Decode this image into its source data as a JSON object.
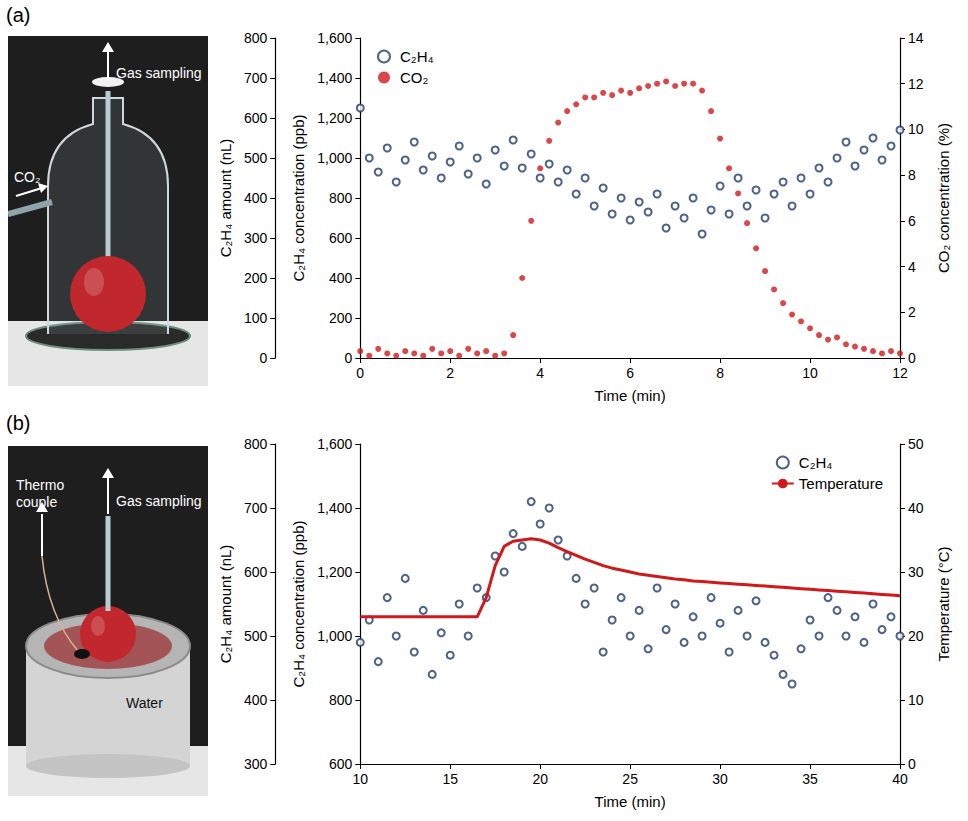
{
  "panels": [
    {
      "label": "(a)",
      "photo": {
        "gas_sampling": "Gas sampling",
        "inlet": "CO₂"
      }
    },
    {
      "label": "(b)",
      "photo": {
        "thermocouple": "Thermo couple",
        "gas_sampling": "Gas sampling",
        "water": "Water"
      }
    }
  ],
  "chart_data": [
    {
      "type": "scatter",
      "xlabel": "Time (min)",
      "ylabel": "C₂H₄ concentration (ppb)",
      "y2label": "CO₂ concentration (%)",
      "y3label": "C₂H₄ amount (nL)",
      "xlim": [
        0,
        12
      ],
      "xticks": [
        0,
        2,
        4,
        6,
        8,
        10,
        12
      ],
      "ylim": [
        0,
        1600
      ],
      "yticks": [
        0,
        200,
        400,
        600,
        800,
        1000,
        1200,
        1400,
        1600
      ],
      "y2lim": [
        0,
        14
      ],
      "y2ticks": [
        0,
        2,
        4,
        6,
        8,
        10,
        12,
        14
      ],
      "y3lim": [
        0,
        800
      ],
      "y3ticks": [
        0,
        100,
        200,
        300,
        400,
        500,
        600,
        700,
        800
      ],
      "legend": "top-left",
      "grid": false,
      "x": [
        0,
        0.2,
        0.4,
        0.6,
        0.8,
        1,
        1.2,
        1.4,
        1.6,
        1.8,
        2,
        2.2,
        2.4,
        2.6,
        2.8,
        3,
        3.2,
        3.4,
        3.6,
        3.8,
        4,
        4.2,
        4.4,
        4.6,
        4.8,
        5,
        5.2,
        5.4,
        5.6,
        5.8,
        6,
        6.2,
        6.4,
        6.6,
        6.8,
        7,
        7.2,
        7.4,
        7.6,
        7.8,
        8,
        8.2,
        8.4,
        8.6,
        8.8,
        9,
        9.2,
        9.4,
        9.6,
        9.8,
        10,
        10.2,
        10.4,
        10.6,
        10.8,
        11,
        11.2,
        11.4,
        11.6,
        11.8,
        12
      ],
      "series": [
        {
          "name": "C₂H₄",
          "color": "#1f3a6e",
          "marker": "hollow_circle",
          "axis": "y",
          "values": [
            1250,
            1000,
            930,
            1050,
            880,
            990,
            1080,
            940,
            1010,
            900,
            980,
            1060,
            920,
            1000,
            870,
            1040,
            960,
            1090,
            950,
            1020,
            900,
            970,
            880,
            940,
            820,
            900,
            760,
            850,
            720,
            800,
            690,
            780,
            730,
            820,
            650,
            760,
            700,
            800,
            620,
            740,
            860,
            720,
            900,
            760,
            840,
            700,
            820,
            880,
            760,
            900,
            820,
            950,
            880,
            1000,
            1080,
            960,
            1040,
            1100,
            990,
            1060,
            1140
          ]
        },
        {
          "name": "CO₂",
          "color": "#d0191b",
          "marker": "circle",
          "axis": "y2",
          "values": [
            0.3,
            0.1,
            0.4,
            0.2,
            0.1,
            0.3,
            0.2,
            0.1,
            0.4,
            0.2,
            0.3,
            0.1,
            0.4,
            0.2,
            0.3,
            0.1,
            0.2,
            1.0,
            3.5,
            6.0,
            8.3,
            9.5,
            10.3,
            10.8,
            11.1,
            11.4,
            11.4,
            11.6,
            11.5,
            11.7,
            11.6,
            11.8,
            11.9,
            12.0,
            12.1,
            11.9,
            12.0,
            12.0,
            11.7,
            10.8,
            9.6,
            8.3,
            7.2,
            5.9,
            4.8,
            3.8,
            3.0,
            2.4,
            1.9,
            1.6,
            1.3,
            1.0,
            0.8,
            0.9,
            0.6,
            0.5,
            0.4,
            0.3,
            0.2,
            0.3,
            0.2
          ]
        }
      ]
    },
    {
      "type": "scatter",
      "xlabel": "Time (min)",
      "ylabel": "C₂H₄ concentration (ppb)",
      "y2label": "Temperature (°C)",
      "y3label": "C₂H₄ amount (nL)",
      "xlim": [
        10,
        40
      ],
      "xticks": [
        10,
        15,
        20,
        25,
        30,
        35,
        40
      ],
      "ylim": [
        600,
        1600
      ],
      "yticks": [
        600,
        800,
        1000,
        1200,
        1400,
        1600
      ],
      "y2lim": [
        0,
        50
      ],
      "y2ticks": [
        0,
        10,
        20,
        30,
        40,
        50
      ],
      "y3lim": [
        300,
        800
      ],
      "y3ticks": [
        300,
        400,
        500,
        600,
        700,
        800
      ],
      "legend": "top-right",
      "grid": false,
      "x": [
        10,
        10.5,
        11,
        11.5,
        12,
        12.5,
        13,
        13.5,
        14,
        14.5,
        15,
        15.5,
        16,
        16.5,
        17,
        17.5,
        18,
        18.5,
        19,
        19.5,
        20,
        20.5,
        21,
        21.5,
        22,
        22.5,
        23,
        23.5,
        24,
        24.5,
        25,
        25.5,
        26,
        26.5,
        27,
        27.5,
        28,
        28.5,
        29,
        29.5,
        30,
        30.5,
        31,
        31.5,
        32,
        32.5,
        33,
        33.5,
        34,
        34.5,
        35,
        35.5,
        36,
        36.5,
        37,
        37.5,
        38,
        38.5,
        39,
        39.5,
        40
      ],
      "series": [
        {
          "name": "C₂H₄",
          "color": "#1f3a6e",
          "marker": "hollow_circle",
          "axis": "y",
          "values": [
            980,
            1050,
            920,
            1120,
            1000,
            1180,
            950,
            1080,
            880,
            1010,
            940,
            1100,
            1000,
            1150,
            1120,
            1250,
            1200,
            1320,
            1280,
            1420,
            1350,
            1400,
            1300,
            1250,
            1180,
            1100,
            1150,
            950,
            1050,
            1120,
            1000,
            1080,
            960,
            1150,
            1020,
            1100,
            980,
            1060,
            1000,
            1120,
            1040,
            950,
            1080,
            1000,
            1110,
            980,
            940,
            880,
            850,
            960,
            1050,
            1000,
            1120,
            1080,
            1000,
            1060,
            980,
            1100,
            1020,
            1060,
            1000
          ]
        },
        {
          "name": "Temperature",
          "color": "#d0191b",
          "type": "line",
          "line_style": "solid",
          "axis": "y2",
          "values": [
            23,
            23,
            23,
            23,
            23,
            23,
            23,
            23,
            23,
            23,
            23,
            23,
            23,
            23,
            26,
            31,
            34,
            34.8,
            35,
            35.2,
            35,
            34.5,
            33.8,
            33.2,
            32.6,
            32,
            31.5,
            31,
            30.6,
            30.3,
            30,
            29.7,
            29.5,
            29.3,
            29.1,
            28.9,
            28.8,
            28.6,
            28.5,
            28.4,
            28.3,
            28.2,
            28.1,
            28,
            27.9,
            27.8,
            27.7,
            27.6,
            27.5,
            27.4,
            27.3,
            27.2,
            27.1,
            27,
            26.9,
            26.8,
            26.7,
            26.6,
            26.5,
            26.4,
            26.3
          ]
        }
      ]
    }
  ]
}
